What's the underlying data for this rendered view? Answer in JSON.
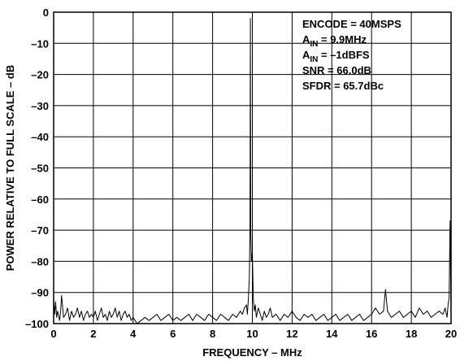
{
  "chart_data": {
    "type": "line",
    "title": "",
    "xlabel": "FREQUENCY – MHz",
    "ylabel": "POWER RELATIVE TO FULL SCALE – dB",
    "xlim": [
      0,
      20
    ],
    "ylim": [
      -100,
      0
    ],
    "grid": true,
    "x_ticks": [
      "0",
      "2",
      "4",
      "6",
      "8",
      "10",
      "12",
      "14",
      "16",
      "18",
      "20"
    ],
    "y_ticks": [
      "0",
      "–10",
      "–20",
      "–30",
      "–40",
      "–50",
      "–60",
      "–70",
      "–80",
      "–90",
      "–100"
    ],
    "x_tick_values": [
      0,
      2,
      4,
      6,
      8,
      10,
      12,
      14,
      16,
      18,
      20
    ],
    "y_tick_values": [
      0,
      -10,
      -20,
      -30,
      -40,
      -50,
      -60,
      -70,
      -80,
      -90,
      -100
    ],
    "annotations": [
      {
        "text": "ENCODE = 40MSPS"
      },
      {
        "main": "A",
        "sub": "IN",
        "rest": " = 9.9MHz"
      },
      {
        "main": "A",
        "sub": "IN",
        "rest": " = –1dBFS"
      },
      {
        "text": "SNR = 66.0dB"
      },
      {
        "text": "SFDR = 65.7dBc"
      }
    ],
    "series": [
      {
        "x": [
          0.0,
          0.05,
          0.1,
          0.15,
          0.2,
          0.3,
          0.35,
          0.4,
          0.5,
          0.6,
          0.7,
          0.8,
          0.9,
          1.0,
          1.1,
          1.2,
          1.3,
          1.4,
          1.5,
          1.6,
          1.7,
          1.8,
          1.9,
          2.0,
          2.1,
          2.2,
          2.3,
          2.4,
          2.5,
          2.6,
          2.7,
          2.8,
          2.9,
          3.0,
          3.1,
          3.2,
          3.3,
          3.4,
          3.5,
          3.6,
          3.7,
          3.8,
          3.9,
          4.0,
          4.2,
          4.4,
          4.6,
          4.8,
          5.0,
          5.2,
          5.4,
          5.6,
          5.8,
          6.0,
          6.2,
          6.4,
          6.6,
          6.8,
          7.0,
          7.2,
          7.4,
          7.6,
          7.8,
          8.0,
          8.2,
          8.4,
          8.6,
          8.8,
          9.0,
          9.2,
          9.4,
          9.5,
          9.6,
          9.7,
          9.75,
          9.8,
          9.85,
          9.88,
          9.9,
          9.92,
          9.95,
          10.0,
          10.05,
          10.1,
          10.15,
          10.2,
          10.3,
          10.4,
          10.5,
          10.6,
          10.7,
          10.8,
          10.9,
          11.0,
          11.2,
          11.4,
          11.6,
          11.8,
          12.0,
          12.2,
          12.4,
          12.6,
          12.8,
          13.0,
          13.2,
          13.4,
          13.6,
          13.8,
          14.0,
          14.2,
          14.4,
          14.6,
          14.8,
          15.0,
          15.2,
          15.4,
          15.6,
          15.8,
          16.0,
          16.2,
          16.4,
          16.6,
          16.7,
          16.8,
          16.9,
          17.0,
          17.2,
          17.4,
          17.6,
          17.8,
          18.0,
          18.2,
          18.4,
          18.6,
          18.8,
          19.0,
          19.2,
          19.4,
          19.6,
          19.7,
          19.8,
          19.85,
          19.9,
          19.95,
          20.0
        ],
        "y": [
          -92,
          -97,
          -93,
          -98,
          -96,
          -99,
          -96,
          -91,
          -98,
          -97,
          -95,
          -99,
          -96,
          -98,
          -97,
          -95,
          -98,
          -96,
          -99,
          -97,
          -96,
          -98,
          -97,
          -98,
          -96,
          -99,
          -97,
          -95,
          -98,
          -97,
          -99,
          -96,
          -98,
          -97,
          -95,
          -98,
          -96,
          -99,
          -97,
          -96,
          -98,
          -97,
          -99,
          -98,
          -100,
          -99,
          -98,
          -99,
          -98,
          -97,
          -99,
          -98,
          -97,
          -99,
          -98,
          -99,
          -98,
          -97,
          -99,
          -97,
          -98,
          -99,
          -97,
          -98,
          -99,
          -97,
          -98,
          -99,
          -97,
          -98,
          -96,
          -97,
          -95,
          -94,
          -97,
          -92,
          -85,
          -70,
          -2,
          -70,
          -80,
          -77,
          -92,
          -96,
          -94,
          -98,
          -95,
          -97,
          -99,
          -96,
          -98,
          -97,
          -95,
          -98,
          -97,
          -99,
          -97,
          -98,
          -96,
          -98,
          -99,
          -97,
          -98,
          -97,
          -99,
          -98,
          -97,
          -99,
          -98,
          -97,
          -99,
          -98,
          -97,
          -99,
          -98,
          -97,
          -99,
          -98,
          -97,
          -95,
          -97,
          -96,
          -89,
          -96,
          -97,
          -98,
          -97,
          -96,
          -98,
          -97,
          -96,
          -98,
          -95,
          -97,
          -96,
          -98,
          -97,
          -96,
          -97,
          -95,
          -98,
          -94,
          -92,
          -67,
          -99
        ]
      }
    ]
  }
}
